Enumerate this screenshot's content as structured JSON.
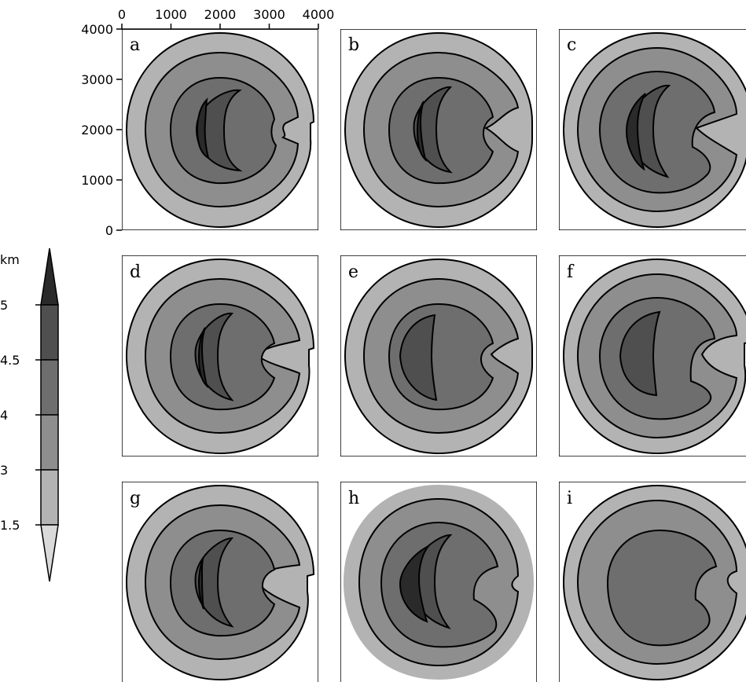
{
  "figure": {
    "panels": [
      {
        "letter": "a"
      },
      {
        "letter": "b"
      },
      {
        "letter": "c"
      },
      {
        "letter": "d"
      },
      {
        "letter": "e"
      },
      {
        "letter": "f"
      },
      {
        "letter": "g"
      },
      {
        "letter": "h"
      },
      {
        "letter": "i"
      }
    ],
    "x_ticks": [
      "0",
      "1000",
      "2000",
      "3000",
      "4000"
    ],
    "y_ticks": [
      "4000",
      "3000",
      "2000",
      "1000",
      "0"
    ],
    "colorbar": {
      "unit": "km",
      "labels": [
        "5",
        "4.5",
        "4",
        "3",
        "1.5"
      ],
      "colors": [
        "#2a2a2a",
        "#4f4f4f",
        "#6e6e6e",
        "#8e8e8e",
        "#b3b3b3",
        "#dadada"
      ]
    }
  }
}
